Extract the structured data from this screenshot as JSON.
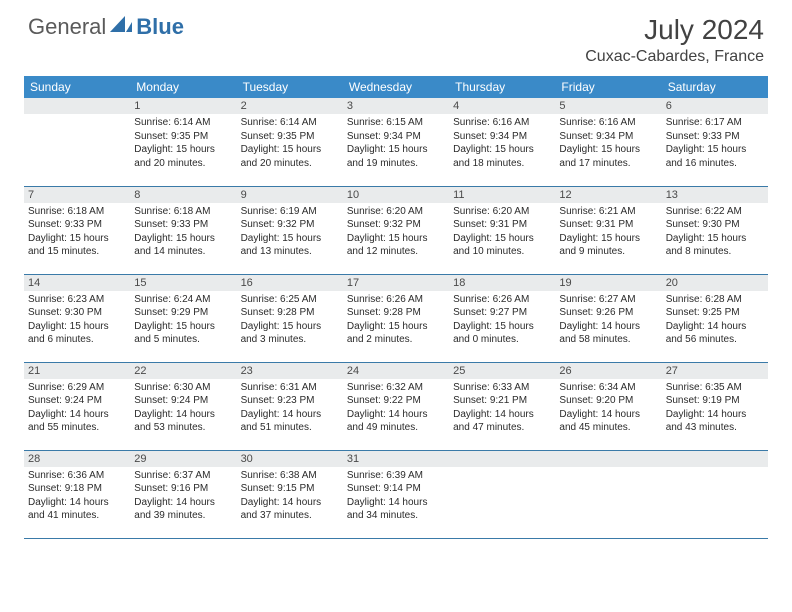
{
  "brand": {
    "text1": "General",
    "text2": "Blue",
    "text1_color": "#6a6a6a",
    "text2_color": "#2f6fa8"
  },
  "title": "July 2024",
  "location": "Cuxac-Cabardes, France",
  "colors": {
    "header_bg": "#3a8ac8",
    "header_text": "#ffffff",
    "daynum_bg": "#e9ebec",
    "row_border": "#3a7aa8",
    "body_text": "#2b2b2b"
  },
  "weekdays": [
    "Sunday",
    "Monday",
    "Tuesday",
    "Wednesday",
    "Thursday",
    "Friday",
    "Saturday"
  ],
  "weeks": [
    [
      {
        "blank": true
      },
      {
        "n": "1",
        "sr": "6:14 AM",
        "ss": "9:35 PM",
        "dl": "15 hours and 20 minutes."
      },
      {
        "n": "2",
        "sr": "6:14 AM",
        "ss": "9:35 PM",
        "dl": "15 hours and 20 minutes."
      },
      {
        "n": "3",
        "sr": "6:15 AM",
        "ss": "9:34 PM",
        "dl": "15 hours and 19 minutes."
      },
      {
        "n": "4",
        "sr": "6:16 AM",
        "ss": "9:34 PM",
        "dl": "15 hours and 18 minutes."
      },
      {
        "n": "5",
        "sr": "6:16 AM",
        "ss": "9:34 PM",
        "dl": "15 hours and 17 minutes."
      },
      {
        "n": "6",
        "sr": "6:17 AM",
        "ss": "9:33 PM",
        "dl": "15 hours and 16 minutes."
      }
    ],
    [
      {
        "n": "7",
        "sr": "6:18 AM",
        "ss": "9:33 PM",
        "dl": "15 hours and 15 minutes."
      },
      {
        "n": "8",
        "sr": "6:18 AM",
        "ss": "9:33 PM",
        "dl": "15 hours and 14 minutes."
      },
      {
        "n": "9",
        "sr": "6:19 AM",
        "ss": "9:32 PM",
        "dl": "15 hours and 13 minutes."
      },
      {
        "n": "10",
        "sr": "6:20 AM",
        "ss": "9:32 PM",
        "dl": "15 hours and 12 minutes."
      },
      {
        "n": "11",
        "sr": "6:20 AM",
        "ss": "9:31 PM",
        "dl": "15 hours and 10 minutes."
      },
      {
        "n": "12",
        "sr": "6:21 AM",
        "ss": "9:31 PM",
        "dl": "15 hours and 9 minutes."
      },
      {
        "n": "13",
        "sr": "6:22 AM",
        "ss": "9:30 PM",
        "dl": "15 hours and 8 minutes."
      }
    ],
    [
      {
        "n": "14",
        "sr": "6:23 AM",
        "ss": "9:30 PM",
        "dl": "15 hours and 6 minutes."
      },
      {
        "n": "15",
        "sr": "6:24 AM",
        "ss": "9:29 PM",
        "dl": "15 hours and 5 minutes."
      },
      {
        "n": "16",
        "sr": "6:25 AM",
        "ss": "9:28 PM",
        "dl": "15 hours and 3 minutes."
      },
      {
        "n": "17",
        "sr": "6:26 AM",
        "ss": "9:28 PM",
        "dl": "15 hours and 2 minutes."
      },
      {
        "n": "18",
        "sr": "6:26 AM",
        "ss": "9:27 PM",
        "dl": "15 hours and 0 minutes."
      },
      {
        "n": "19",
        "sr": "6:27 AM",
        "ss": "9:26 PM",
        "dl": "14 hours and 58 minutes."
      },
      {
        "n": "20",
        "sr": "6:28 AM",
        "ss": "9:25 PM",
        "dl": "14 hours and 56 minutes."
      }
    ],
    [
      {
        "n": "21",
        "sr": "6:29 AM",
        "ss": "9:24 PM",
        "dl": "14 hours and 55 minutes."
      },
      {
        "n": "22",
        "sr": "6:30 AM",
        "ss": "9:24 PM",
        "dl": "14 hours and 53 minutes."
      },
      {
        "n": "23",
        "sr": "6:31 AM",
        "ss": "9:23 PM",
        "dl": "14 hours and 51 minutes."
      },
      {
        "n": "24",
        "sr": "6:32 AM",
        "ss": "9:22 PM",
        "dl": "14 hours and 49 minutes."
      },
      {
        "n": "25",
        "sr": "6:33 AM",
        "ss": "9:21 PM",
        "dl": "14 hours and 47 minutes."
      },
      {
        "n": "26",
        "sr": "6:34 AM",
        "ss": "9:20 PM",
        "dl": "14 hours and 45 minutes."
      },
      {
        "n": "27",
        "sr": "6:35 AM",
        "ss": "9:19 PM",
        "dl": "14 hours and 43 minutes."
      }
    ],
    [
      {
        "n": "28",
        "sr": "6:36 AM",
        "ss": "9:18 PM",
        "dl": "14 hours and 41 minutes."
      },
      {
        "n": "29",
        "sr": "6:37 AM",
        "ss": "9:16 PM",
        "dl": "14 hours and 39 minutes."
      },
      {
        "n": "30",
        "sr": "6:38 AM",
        "ss": "9:15 PM",
        "dl": "14 hours and 37 minutes."
      },
      {
        "n": "31",
        "sr": "6:39 AM",
        "ss": "9:14 PM",
        "dl": "14 hours and 34 minutes."
      },
      {
        "blank": true
      },
      {
        "blank": true
      },
      {
        "blank": true
      }
    ]
  ],
  "labels": {
    "sunrise": "Sunrise:",
    "sunset": "Sunset:",
    "daylight": "Daylight:"
  }
}
